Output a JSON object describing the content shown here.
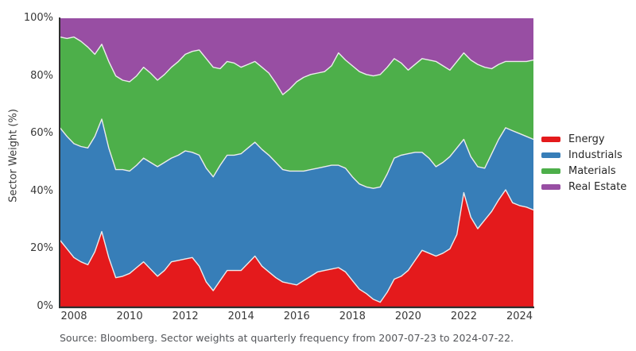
{
  "figure": {
    "ylabel": "Sector Weight (%)",
    "source_note": "Source: Bloomberg. Sector weights at quarterly frequency from 2007-07-23 to 2024-07-22."
  },
  "chart_data": {
    "type": "area",
    "stacked": true,
    "title": "",
    "xlabel": "",
    "ylabel": "Sector Weight (%)",
    "ylim": [
      0,
      100
    ],
    "grid": false,
    "legend_position": "right",
    "axis_color": "#2e2e2e",
    "boundary_color": "#ececec",
    "yticks": [
      0,
      20,
      40,
      60,
      80,
      100
    ],
    "ytick_labels": [
      "0%",
      "20%",
      "40%",
      "60%",
      "80%",
      "100%"
    ],
    "xticks": [
      2008,
      2010,
      2012,
      2014,
      2016,
      2018,
      2020,
      2022,
      2024
    ],
    "source_note": "Source: Bloomberg. Sector weights at quarterly frequency from 2007-07-23 to 2024-07-22.",
    "x": [
      2007.5,
      2007.75,
      2008,
      2008.25,
      2008.5,
      2008.75,
      2009,
      2009.25,
      2009.5,
      2009.75,
      2010,
      2010.25,
      2010.5,
      2010.75,
      2011,
      2011.25,
      2011.5,
      2011.75,
      2012,
      2012.25,
      2012.5,
      2012.75,
      2013,
      2013.25,
      2013.5,
      2013.75,
      2014,
      2014.25,
      2014.5,
      2014.75,
      2015,
      2015.25,
      2015.5,
      2015.75,
      2016,
      2016.25,
      2016.5,
      2016.75,
      2017,
      2017.25,
      2017.5,
      2017.75,
      2018,
      2018.25,
      2018.5,
      2018.75,
      2019,
      2019.25,
      2019.5,
      2019.75,
      2020,
      2020.25,
      2020.5,
      2020.75,
      2021,
      2021.25,
      2021.5,
      2021.75,
      2022,
      2022.25,
      2022.5,
      2022.75,
      2023,
      2023.25,
      2023.5,
      2023.75,
      2024,
      2024.25,
      2024.5
    ],
    "series": [
      {
        "name": "Energy",
        "color": "#e41a1c",
        "values": [
          23,
          20,
          17,
          15.5,
          14.5,
          19,
          26,
          17,
          10,
          10.5,
          11.5,
          13.5,
          15.5,
          13,
          10.5,
          12.5,
          15.5,
          16,
          16.5,
          17,
          14,
          8.5,
          5.5,
          9,
          12.5,
          12.5,
          12.5,
          15,
          17.5,
          14,
          12,
          10,
          8.5,
          8,
          7.5,
          9,
          10.5,
          12,
          12.5,
          13,
          13.5,
          12,
          9,
          6,
          4.5,
          2.5,
          1.5,
          5,
          9.5,
          10.5,
          12.5,
          16,
          19.5,
          18.5,
          17.5,
          18.5,
          20,
          25,
          39.5,
          31,
          27,
          30,
          33,
          37,
          40.5,
          36,
          35,
          34.5,
          33.5
        ]
      },
      {
        "name": "Industrials",
        "color": "#377eb8",
        "values": [
          39,
          39,
          39.5,
          40,
          40.5,
          40,
          39,
          38,
          37.5,
          37,
          35.5,
          35.5,
          36,
          37,
          38,
          37.5,
          36,
          36.5,
          37.5,
          36.5,
          38.5,
          39.5,
          39.5,
          40,
          40,
          40,
          40.5,
          40,
          39.5,
          40.5,
          40.5,
          40,
          39,
          39,
          39.5,
          38,
          37,
          36,
          36,
          36,
          35.5,
          36,
          36,
          36.5,
          37,
          38.5,
          40,
          41,
          42,
          42,
          40.5,
          37.5,
          34,
          33,
          31,
          31.5,
          32,
          30,
          18.5,
          21,
          21.5,
          18,
          20,
          21,
          21.5,
          25,
          25,
          24.5,
          24.5
        ]
      },
      {
        "name": "Materials",
        "color": "#4daf4a",
        "values": [
          31.5,
          34,
          37,
          36.5,
          35,
          28.5,
          26,
          30,
          32.5,
          31,
          31,
          31,
          31.5,
          31,
          30,
          30.5,
          31.5,
          32.5,
          33.5,
          35,
          36.5,
          38,
          38,
          33.5,
          32.5,
          32,
          30,
          29,
          28,
          28.5,
          28.5,
          27.5,
          26,
          28.5,
          31,
          32.5,
          33,
          33,
          33,
          34.5,
          39,
          37.5,
          38.5,
          39,
          39,
          39,
          39,
          37,
          34.5,
          32,
          29,
          30.5,
          32.5,
          34,
          36.5,
          33.5,
          30,
          30,
          30,
          33.5,
          35.5,
          35,
          29.5,
          26,
          23,
          24,
          25,
          26,
          27.5
        ]
      },
      {
        "name": "Real Estate",
        "color": "#984ea3",
        "values": [
          6.5,
          7,
          6.5,
          8,
          10,
          12.5,
          9,
          15,
          20,
          21.5,
          22,
          20,
          17,
          19,
          21.5,
          19.5,
          17,
          15,
          12.5,
          11.5,
          11,
          14,
          17,
          17.5,
          15,
          15.5,
          17,
          16,
          15,
          17,
          19,
          22.5,
          26.5,
          24.5,
          22,
          20.5,
          19.5,
          19,
          18.5,
          16.5,
          12,
          14.5,
          16.5,
          18.5,
          19.5,
          20,
          19.5,
          17,
          14,
          15.5,
          18,
          16,
          14,
          14.5,
          15,
          16.5,
          18,
          15,
          12,
          14.5,
          16,
          17,
          17.5,
          16,
          15,
          15,
          15,
          15,
          14.5
        ]
      }
    ]
  }
}
